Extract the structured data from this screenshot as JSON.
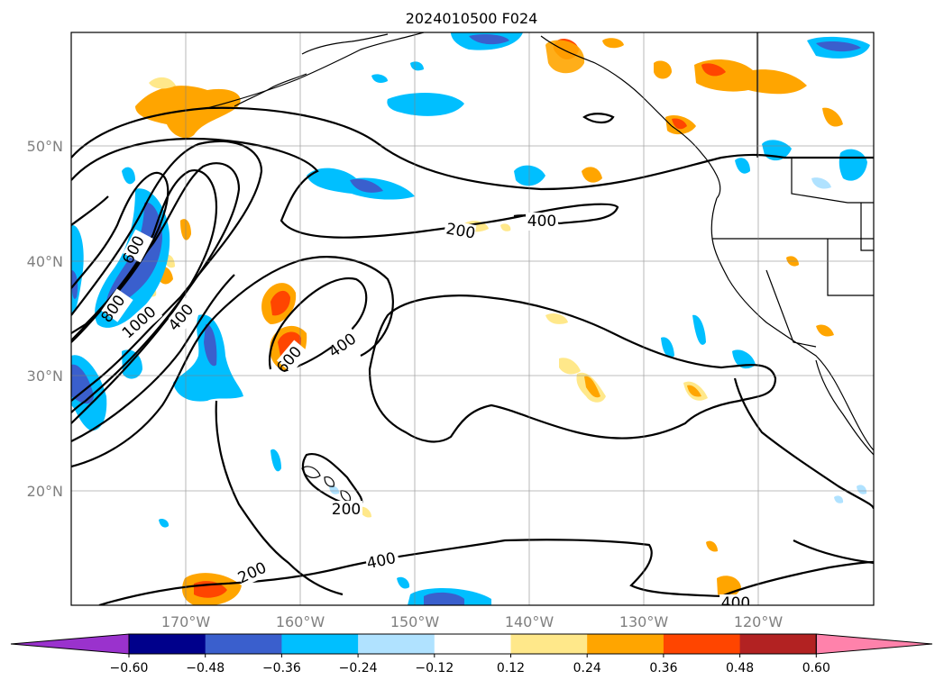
{
  "title": "2024010500 F024",
  "map": {
    "lat_labels": [
      "50°N",
      "40°N",
      "30°N",
      "20°N"
    ],
    "lon_labels": [
      "170°W",
      "160°W",
      "150°W",
      "140°W",
      "130°W",
      "120°W"
    ],
    "contour_labels": [
      "600",
      "800",
      "1000",
      "400",
      "600",
      "400",
      "200",
      "400",
      "200",
      "200",
      "400",
      "400"
    ]
  },
  "colorbar": {
    "ticks": [
      "−0.60",
      "−0.48",
      "−0.36",
      "−0.24",
      "−0.12",
      "0.12",
      "0.24",
      "0.36",
      "0.48",
      "0.60"
    ],
    "colors": [
      "#9a32cd",
      "#00008b",
      "#3a5fcd",
      "#00bfff",
      "#b0e2ff",
      "#ffffff",
      "#ffe88a",
      "#ffa500",
      "#ff4500",
      "#b22222",
      "#ff82ab"
    ]
  }
}
